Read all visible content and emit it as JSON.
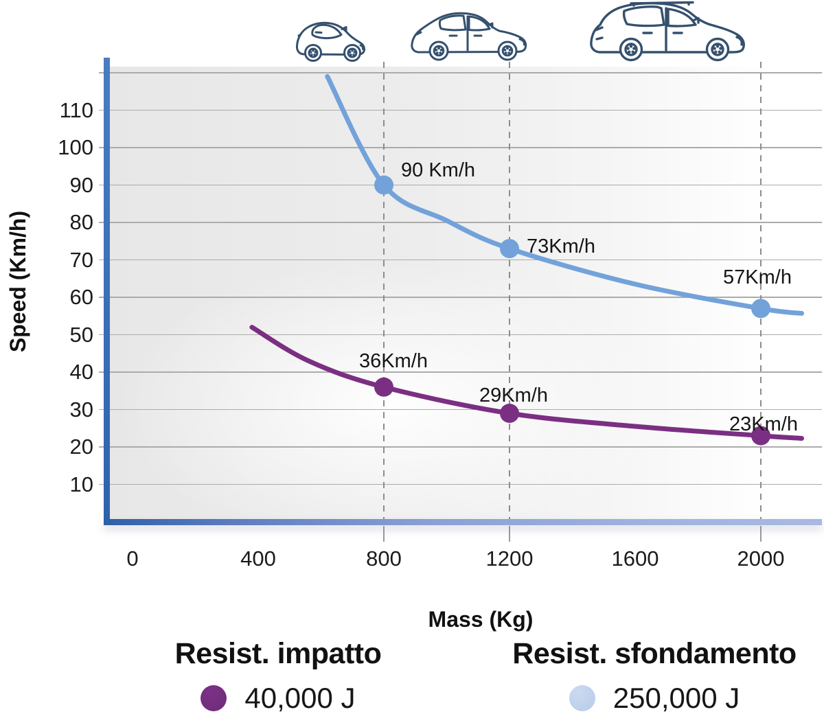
{
  "chart_data": {
    "type": "line",
    "title": "",
    "xlabel": "Mass (Kg)",
    "ylabel": "Speed (Km/h)",
    "x_ticks": [
      0,
      400,
      800,
      1200,
      1600,
      2000
    ],
    "y_ticks": [
      10,
      20,
      30,
      40,
      50,
      60,
      70,
      80,
      90,
      100,
      110
    ],
    "xlim": [
      0,
      2150
    ],
    "ylim": [
      0,
      123
    ],
    "grid": true,
    "gridline_values": [
      10,
      20,
      30,
      40,
      50,
      60,
      70,
      80,
      90,
      100,
      110,
      120
    ],
    "guide_masses": [
      800,
      1200,
      2000
    ],
    "legend_position": "bottom",
    "series": [
      {
        "name": "Resist. impatto",
        "energy_label": "40,000 J",
        "color": "#7B2F82",
        "legend_color": "#7B3287",
        "points": [
          {
            "mass": 800,
            "speed": 36,
            "label": "36Km/h",
            "label_offset": [
              -36,
              -52
            ]
          },
          {
            "mass": 1200,
            "speed": 29,
            "label": "29Km/h",
            "label_offset": [
              -44,
              -40
            ]
          },
          {
            "mass": 2000,
            "speed": 23,
            "label": "23Km/h",
            "label_offset": [
              -46,
              -31
            ]
          }
        ],
        "curve_anchors": [
          [
            380,
            52
          ],
          [
            560,
            43
          ],
          [
            800,
            36
          ],
          [
            1200,
            29
          ],
          [
            1600,
            25.5
          ],
          [
            2000,
            23
          ],
          [
            2130,
            22.3
          ]
        ]
      },
      {
        "name": "Resist. sfondamento",
        "energy_label": "250,000 J",
        "color": "#73A2DA",
        "legend_color": "#B5CAE9",
        "points": [
          {
            "mass": 800,
            "speed": 90,
            "label": "90 Km/h",
            "label_offset": [
              25,
              -36
            ]
          },
          {
            "mass": 1200,
            "speed": 73,
            "label": "73Km/h",
            "label_offset": [
              25,
              -17
            ]
          },
          {
            "mass": 2000,
            "speed": 57,
            "label": "57Km/h",
            "label_offset": [
              -55,
              -59
            ]
          }
        ],
        "curve_anchors": [
          [
            620,
            119
          ],
          [
            800,
            90
          ],
          [
            1000,
            80.5
          ],
          [
            1200,
            73
          ],
          [
            1600,
            63.5
          ],
          [
            2000,
            57
          ],
          [
            2130,
            55.7
          ]
        ]
      }
    ]
  },
  "icons": {
    "cars": [
      "city-car-icon",
      "hatchback-car-icon",
      "suv-car-icon"
    ]
  },
  "colors": {
    "axis_blue": "#2E63AC",
    "axis_fade": "#A9B9E2",
    "grid": "#ABABAB",
    "guide": "#8C8C8C",
    "car_outline": "#34506E",
    "text": "#151515"
  }
}
